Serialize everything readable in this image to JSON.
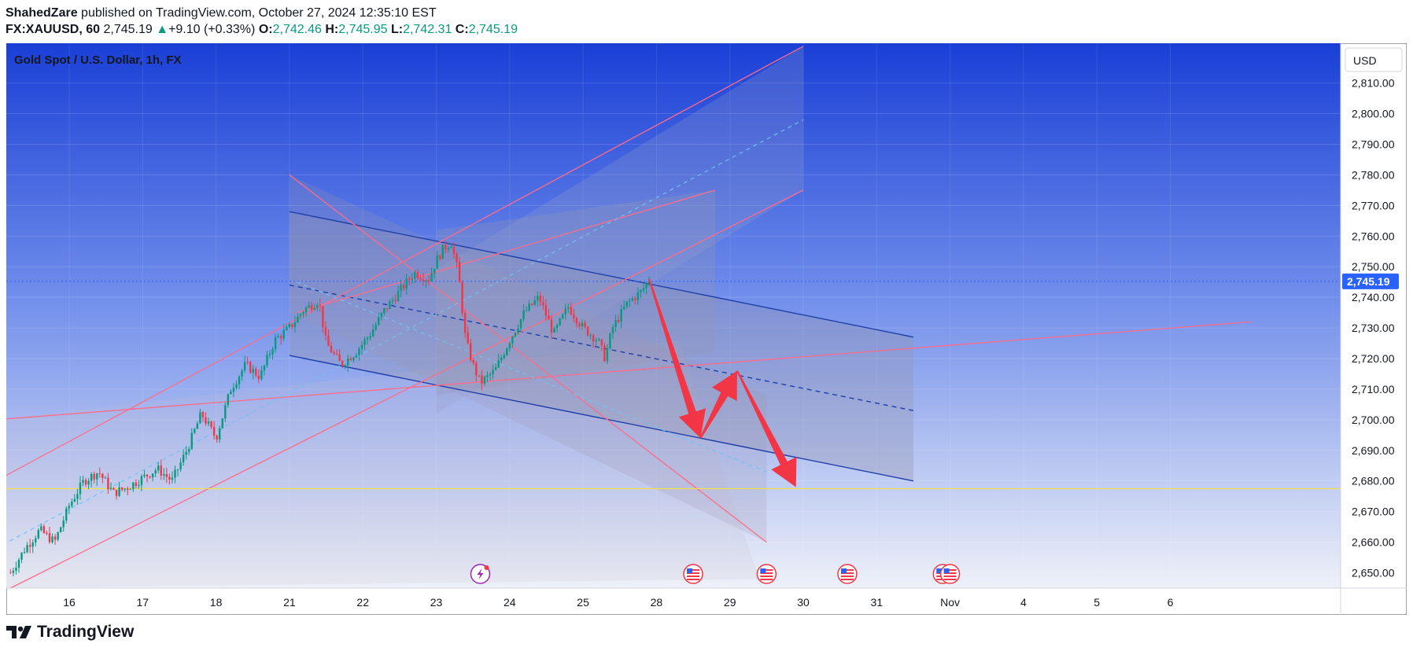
{
  "header": {
    "author": "ShahedZare",
    "published_text": "published on TradingView.com, October 27, 2024 12:35:10 EST",
    "symbol": "FX:XAUUSD, 60",
    "last": "2,745.19",
    "change_arrow": "▲",
    "change": "+9.10 (+0.33%)",
    "o_label": "O:",
    "o_value": "2,742.46",
    "h_label": "H:",
    "h_value": "2,745.95",
    "l_label": "L:",
    "l_value": "2,742.31",
    "c_label": "C:",
    "c_value": "2,745.19"
  },
  "footer": {
    "brand": "TradingView",
    "logo_icon": "tradingview-logo-icon"
  },
  "colors": {
    "candle_up": "#089981",
    "candle_down": "#f23645",
    "channel_blue": "#1f3fa8",
    "channel_pink": "#ff6b8a",
    "support_line": "#f2e04a",
    "arrow_red": "#f23645",
    "price_label_bg": "#2962ff"
  },
  "chart_data": {
    "type": "candlestick",
    "title": "Gold Spot / U.S. Dollar, 1h, FX",
    "currency_button": "USD",
    "current_price": 2745.19,
    "current_price_label": "2,745.19",
    "ylim": [
      2645,
      2823
    ],
    "y_ticks": [
      2650,
      2660,
      2670,
      2680,
      2690,
      2700,
      2710,
      2720,
      2730,
      2740,
      2750,
      2760,
      2770,
      2780,
      2790,
      2800,
      2810
    ],
    "y_tick_labels": [
      "2,650.00",
      "2,660.00",
      "2,670.00",
      "2,680.00",
      "2,690.00",
      "2,700.00",
      "2,710.00",
      "2,720.00",
      "2,730.00",
      "2,740.00",
      "2,750.00",
      "2,760.00",
      "2,770.00",
      "2,780.00",
      "2,790.00",
      "2,800.00",
      "2,810.00"
    ],
    "x_ticks": [
      {
        "label": "16",
        "t": 16
      },
      {
        "label": "17",
        "t": 17
      },
      {
        "label": "18",
        "t": 18
      },
      {
        "label": "21",
        "t": 19
      },
      {
        "label": "22",
        "t": 20
      },
      {
        "label": "23",
        "t": 21
      },
      {
        "label": "24",
        "t": 22
      },
      {
        "label": "25",
        "t": 23
      },
      {
        "label": "28",
        "t": 24
      },
      {
        "label": "29",
        "t": 25
      },
      {
        "label": "30",
        "t": 26
      },
      {
        "label": "31",
        "t": 27
      },
      {
        "label": "Nov",
        "t": 28
      },
      {
        "label": "4",
        "t": 29
      },
      {
        "label": "5",
        "t": 30
      },
      {
        "label": "6",
        "t": 31
      }
    ],
    "price_path": [
      [
        15.2,
        2650
      ],
      [
        15.4,
        2658
      ],
      [
        15.6,
        2664
      ],
      [
        15.8,
        2660
      ],
      [
        16.0,
        2672
      ],
      [
        16.2,
        2680
      ],
      [
        16.4,
        2683
      ],
      [
        16.6,
        2676
      ],
      [
        16.8,
        2678
      ],
      [
        17.0,
        2681
      ],
      [
        17.2,
        2684
      ],
      [
        17.4,
        2680
      ],
      [
        17.6,
        2690
      ],
      [
        17.8,
        2702
      ],
      [
        18.0,
        2694
      ],
      [
        18.2,
        2710
      ],
      [
        18.4,
        2718
      ],
      [
        18.6,
        2714
      ],
      [
        18.8,
        2726
      ],
      [
        19.0,
        2730
      ],
      [
        19.2,
        2736
      ],
      [
        19.4,
        2739
      ],
      [
        19.5,
        2725
      ],
      [
        19.7,
        2718
      ],
      [
        19.9,
        2722
      ],
      [
        20.1,
        2728
      ],
      [
        20.3,
        2736
      ],
      [
        20.5,
        2742
      ],
      [
        20.7,
        2748
      ],
      [
        20.9,
        2746
      ],
      [
        21.0,
        2752
      ],
      [
        21.1,
        2756
      ],
      [
        21.2,
        2758
      ],
      [
        21.3,
        2748
      ],
      [
        21.4,
        2726
      ],
      [
        21.5,
        2718
      ],
      [
        21.6,
        2712
      ],
      [
        21.8,
        2716
      ],
      [
        22.0,
        2726
      ],
      [
        22.2,
        2735
      ],
      [
        22.4,
        2740
      ],
      [
        22.6,
        2728
      ],
      [
        22.8,
        2737
      ],
      [
        23.0,
        2730
      ],
      [
        23.2,
        2726
      ],
      [
        23.3,
        2720
      ],
      [
        23.4,
        2730
      ],
      [
        23.6,
        2738
      ],
      [
        23.8,
        2742
      ],
      [
        23.9,
        2746
      ]
    ],
    "annotations": {
      "support_line": 2677.5,
      "projection_arrows": [
        [
          23.9,
          2746
        ],
        [
          24.6,
          2694
        ],
        [
          25.1,
          2716
        ],
        [
          25.9,
          2678
        ]
      ]
    }
  }
}
